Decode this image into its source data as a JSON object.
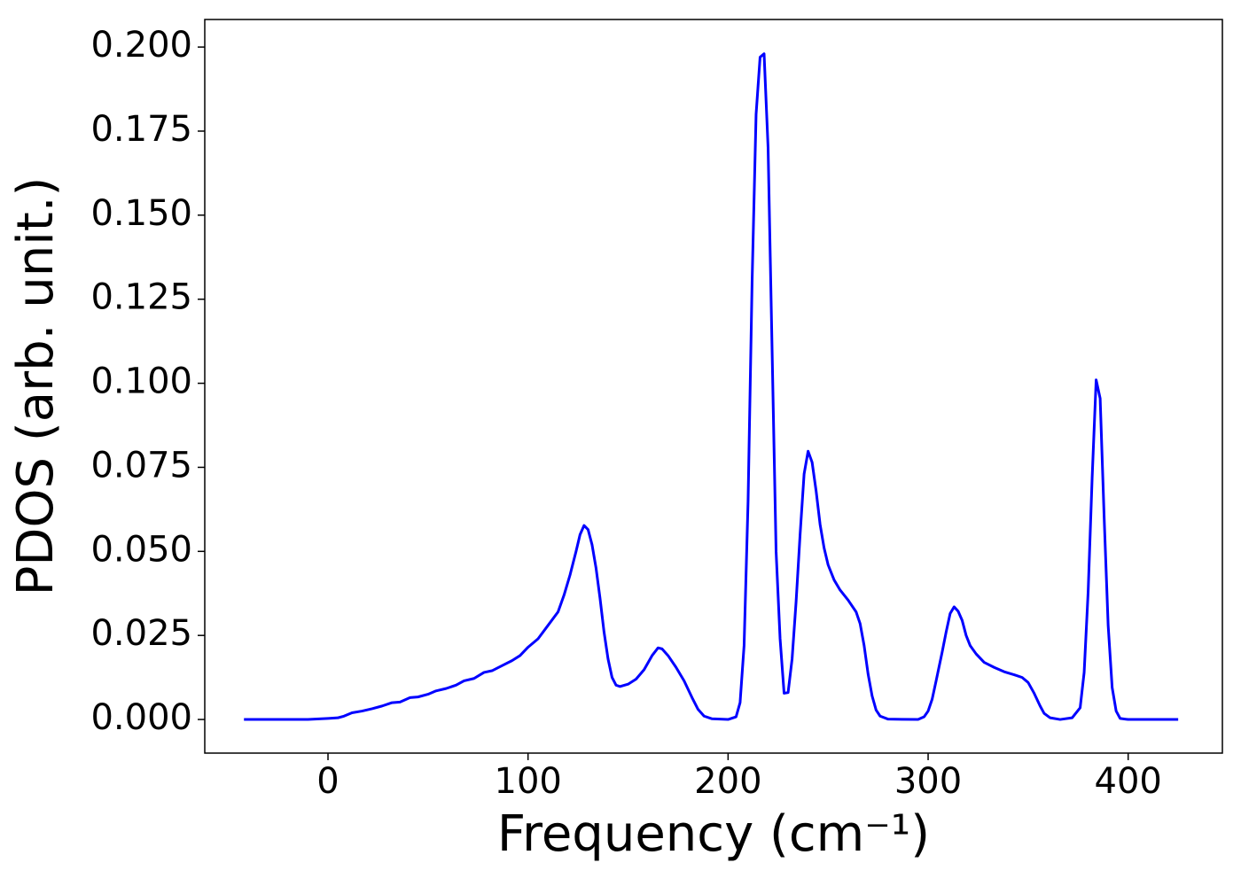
{
  "chart_data": {
    "type": "line",
    "xlabel": "Frequency (cm⁻¹)",
    "ylabel": "PDOS (arb. unit.)",
    "x": [
      -42,
      -20,
      -10,
      0,
      5,
      8,
      12,
      17,
      22,
      27,
      32,
      36,
      41,
      45,
      50,
      54,
      59,
      64,
      68,
      73,
      78,
      82,
      87,
      92,
      96,
      100,
      105,
      110,
      115,
      118,
      121,
      124,
      126,
      128,
      130,
      132,
      134,
      136,
      138,
      140,
      142,
      144,
      146,
      150,
      154,
      158,
      162,
      165,
      167,
      170,
      174,
      178,
      182,
      185,
      188,
      192,
      200,
      204,
      206,
      208,
      210,
      212,
      214,
      216,
      218,
      220,
      222,
      224,
      226,
      228,
      230,
      232,
      234,
      236,
      238,
      240,
      242,
      244,
      246,
      248,
      250,
      253,
      256,
      260,
      264,
      266,
      268,
      270,
      272,
      274,
      276,
      280,
      295,
      298,
      300,
      302,
      304,
      307,
      309,
      311,
      313,
      315,
      317,
      319,
      321,
      324,
      328,
      333,
      338,
      343,
      347,
      350,
      353,
      356,
      358,
      361,
      366,
      372,
      376,
      378,
      380,
      382,
      384,
      386,
      388,
      390,
      392,
      394,
      396,
      400,
      425
    ],
    "series": [
      {
        "name": "PDOS",
        "color": "#0000ff",
        "values": [
          0,
          0,
          0,
          0.0003,
          0.0005,
          0.001,
          0.002,
          0.0025,
          0.0032,
          0.004,
          0.005,
          0.0052,
          0.0065,
          0.0067,
          0.0075,
          0.0085,
          0.0092,
          0.0102,
          0.0115,
          0.0122,
          0.014,
          0.0145,
          0.016,
          0.0175,
          0.019,
          0.0215,
          0.024,
          0.028,
          0.032,
          0.037,
          0.043,
          0.05,
          0.055,
          0.0577,
          0.0565,
          0.052,
          0.045,
          0.036,
          0.026,
          0.018,
          0.0125,
          0.0102,
          0.0098,
          0.0105,
          0.012,
          0.0148,
          0.019,
          0.0213,
          0.021,
          0.019,
          0.0155,
          0.0115,
          0.0065,
          0.003,
          0.001,
          0.0002,
          0,
          0.0008,
          0.005,
          0.022,
          0.065,
          0.13,
          0.18,
          0.197,
          0.198,
          0.17,
          0.11,
          0.05,
          0.024,
          0.0078,
          0.008,
          0.018,
          0.035,
          0.055,
          0.073,
          0.0798,
          0.0765,
          0.068,
          0.058,
          0.051,
          0.046,
          0.0415,
          0.0385,
          0.0355,
          0.032,
          0.0285,
          0.022,
          0.0135,
          0.007,
          0.0028,
          0.001,
          0.0001,
          0,
          0.0008,
          0.0025,
          0.006,
          0.0115,
          0.02,
          0.026,
          0.0315,
          0.0335,
          0.0322,
          0.0295,
          0.025,
          0.022,
          0.0195,
          0.017,
          0.0155,
          0.0142,
          0.0133,
          0.0125,
          0.011,
          0.0078,
          0.004,
          0.0018,
          0.0005,
          0,
          0.0005,
          0.0035,
          0.014,
          0.038,
          0.072,
          0.101,
          0.0955,
          0.06,
          0.028,
          0.0095,
          0.0025,
          0.0003,
          0,
          0
        ]
      }
    ],
    "xlim": [
      -61.6,
      447.1
    ],
    "ylim": [
      -0.01,
      0.2082
    ],
    "xticks": [
      0,
      100,
      200,
      300,
      400
    ],
    "yticks": [
      {
        "value": 0,
        "label": "0.000"
      },
      {
        "value": 0.025,
        "label": "0.025"
      },
      {
        "value": 0.05,
        "label": "0.050"
      },
      {
        "value": 0.075,
        "label": "0.075"
      },
      {
        "value": 0.1,
        "label": "0.100"
      },
      {
        "value": 0.125,
        "label": "0.125"
      },
      {
        "value": 0.15,
        "label": "0.150"
      },
      {
        "value": 0.175,
        "label": "0.175"
      },
      {
        "value": 0.2,
        "label": "0.200"
      }
    ],
    "grid": false
  }
}
